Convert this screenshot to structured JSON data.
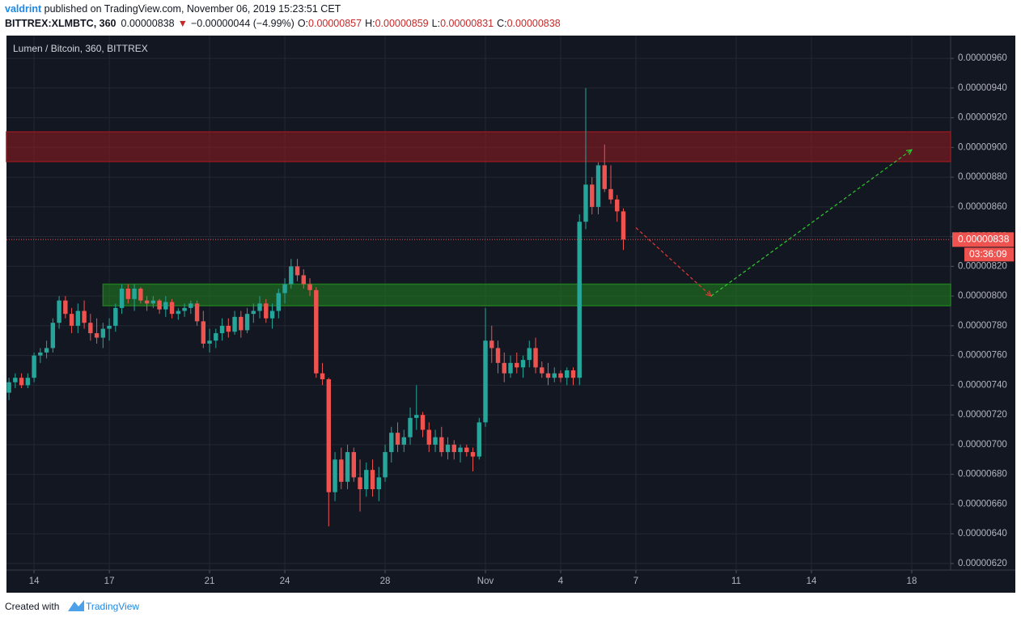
{
  "header": {
    "author": "valdrint",
    "published": " published on TradingView.com, November 06, 2019 15:23:51 CET",
    "symbol": "BITTREX:XLMBTC, 360",
    "price": "0.00000838",
    "arrow": "▼",
    "change": "−0.00000044 (−4.99%)",
    "o_label": "O:",
    "o": "0.00000857",
    "h_label": "H:",
    "h": "0.00000859",
    "l_label": "L:",
    "l": "0.00000831",
    "c_label": "C:",
    "c": "0.00000838"
  },
  "chart_data": {
    "type": "candlestick",
    "title": "Lumen / Bitcoin, 360, BITTREX",
    "up_color": "#26a69a",
    "down_color": "#ef5350",
    "grid": true,
    "open": [
      7.35e-06,
      7.42e-06,
      7.45e-06,
      7.4e-06,
      7.45e-06,
      7.6e-06,
      7.62e-06,
      7.65e-06,
      7.82e-06,
      7.97e-06,
      7.88e-06,
      7.8e-06,
      7.9e-06,
      7.82e-06,
      7.75e-06,
      7.72e-06,
      7.78e-06,
      7.8e-06,
      7.92e-06,
      8.05e-06,
      7.98e-06,
      8.05e-06,
      7.97e-06,
      7.95e-06,
      7.97e-06,
      7.91e-06,
      7.96e-06,
      7.88e-06,
      7.9e-06,
      7.92e-06,
      7.95e-06,
      7.83e-06,
      7.68e-06,
      7.7e-06,
      7.75e-06,
      7.8e-06,
      7.76e-06,
      7.86e-06,
      7.77e-06,
      7.88e-06,
      7.9e-06,
      7.95e-06,
      7.85e-06,
      7.9e-06,
      8.02e-06,
      8.08e-06,
      8.2e-06,
      8.14e-06,
      8.08e-06,
      8.04e-06,
      7.48e-06,
      7.44e-06,
      6.68e-06,
      6.9e-06,
      6.75e-06,
      6.95e-06,
      6.78e-06,
      6.7e-06,
      6.83e-06,
      6.7e-06,
      6.78e-06,
      6.95e-06,
      7.08e-06,
      7e-06,
      7.05e-06,
      7.18e-06,
      7.2e-06,
      7.1e-06,
      7e-06,
      7.05e-06,
      6.95e-06,
      7e-06,
      6.95e-06,
      6.98e-06,
      6.95e-06,
      6.92e-06,
      7.15e-06,
      7.7e-06,
      7.65e-06,
      7.55e-06,
      7.48e-06,
      7.55e-06,
      7.52e-06,
      7.57e-06,
      7.65e-06,
      7.52e-06,
      7.48e-06,
      7.45e-06,
      7.48e-06,
      7.45e-06,
      7.5e-06,
      7.45e-06,
      8.5e-06,
      8.75e-06,
      8.6e-06,
      8.88e-06,
      8.72e-06,
      8.65e-06,
      8.57e-06
    ],
    "high": [
      7.45e-06,
      7.48e-06,
      7.48e-06,
      7.48e-06,
      7.62e-06,
      7.65e-06,
      7.7e-06,
      7.85e-06,
      8e-06,
      8e-06,
      7.92e-06,
      7.95e-06,
      7.97e-06,
      7.88e-06,
      7.85e-06,
      7.82e-06,
      7.85e-06,
      7.95e-06,
      8.08e-06,
      8.08e-06,
      8.08e-06,
      8.06e-06,
      8e-06,
      8e-06,
      7.98e-06,
      8e-06,
      7.98e-06,
      7.92e-06,
      7.95e-06,
      7.97e-06,
      7.97e-06,
      7.9e-06,
      7.78e-06,
      7.78e-06,
      7.85e-06,
      7.85e-06,
      7.9e-06,
      7.9e-06,
      7.92e-06,
      7.95e-06,
      8e-06,
      7.98e-06,
      7.95e-06,
      8.05e-06,
      8.12e-06,
      8.25e-06,
      8.25e-06,
      8.18e-06,
      8.12e-06,
      8.06e-06,
      7.55e-06,
      7.45e-06,
      6.95e-06,
      6.98e-06,
      7e-06,
      6.98e-06,
      6.9e-06,
      6.88e-06,
      6.9e-06,
      6.85e-06,
      7e-06,
      7.12e-06,
      7.15e-06,
      7.1e-06,
      7.25e-06,
      7.4e-06,
      7.22e-06,
      7.15e-06,
      7.1e-06,
      7.12e-06,
      7.05e-06,
      7.03e-06,
      7e-06,
      7e-06,
      6.98e-06,
      7.18e-06,
      7.92e-06,
      7.8e-06,
      7.7e-06,
      7.62e-06,
      7.6e-06,
      7.62e-06,
      7.6e-06,
      7.7e-06,
      7.72e-06,
      7.56e-06,
      7.55e-06,
      7.52e-06,
      7.5e-06,
      7.52e-06,
      7.52e-06,
      8.55e-06,
      9.4e-06,
      8.8e-06,
      8.9e-06,
      9.02e-06,
      8.88e-06,
      8.68e-06,
      8.59e-06
    ],
    "low": [
      7.3e-06,
      7.38e-06,
      7.38e-06,
      7.38e-06,
      7.42e-06,
      7.55e-06,
      7.58e-06,
      7.62e-06,
      7.78e-06,
      7.85e-06,
      7.75e-06,
      7.75e-06,
      7.78e-06,
      7.7e-06,
      7.68e-06,
      7.65e-06,
      7.7e-06,
      7.76e-06,
      7.88e-06,
      7.95e-06,
      7.9e-06,
      7.95e-06,
      7.9e-06,
      7.92e-06,
      7.88e-06,
      7.86e-06,
      7.85e-06,
      7.84e-06,
      7.86e-06,
      7.88e-06,
      7.8e-06,
      7.65e-06,
      7.62e-06,
      7.65e-06,
      7.7e-06,
      7.72e-06,
      7.74e-06,
      7.72e-06,
      7.75e-06,
      7.82e-06,
      7.85e-06,
      7.82e-06,
      7.78e-06,
      7.85e-06,
      7.95e-06,
      8.05e-06,
      8.1e-06,
      8.05e-06,
      8e-06,
      7.45e-06,
      7.4e-06,
      6.45e-06,
      6.62e-06,
      6.7e-06,
      6.7e-06,
      6.75e-06,
      6.55e-06,
      6.65e-06,
      6.65e-06,
      6.62e-06,
      6.75e-06,
      6.88e-06,
      6.95e-06,
      6.95e-06,
      7e-06,
      7.1e-06,
      7.05e-06,
      6.95e-06,
      6.95e-06,
      6.92e-06,
      6.9e-06,
      6.9e-06,
      6.88e-06,
      6.92e-06,
      6.82e-06,
      6.9e-06,
      7.12e-06,
      7.55e-06,
      7.48e-06,
      7.42e-06,
      7.45e-06,
      7.48e-06,
      7.45e-06,
      7.52e-06,
      7.48e-06,
      7.45e-06,
      7.4e-06,
      7.42e-06,
      7.42e-06,
      7.4e-06,
      7.4e-06,
      7.4e-06,
      8.45e-06,
      8.55e-06,
      8.55e-06,
      8.7e-06,
      8.62e-06,
      8.5e-06,
      8.31e-06
    ],
    "close": [
      7.42e-06,
      7.45e-06,
      7.4e-06,
      7.45e-06,
      7.6e-06,
      7.62e-06,
      7.65e-06,
      7.82e-06,
      7.97e-06,
      7.88e-06,
      7.8e-06,
      7.9e-06,
      7.82e-06,
      7.75e-06,
      7.72e-06,
      7.78e-06,
      7.8e-06,
      7.92e-06,
      8.05e-06,
      7.98e-06,
      8.05e-06,
      7.97e-06,
      7.95e-06,
      7.97e-06,
      7.91e-06,
      7.96e-06,
      7.88e-06,
      7.9e-06,
      7.92e-06,
      7.95e-06,
      7.83e-06,
      7.68e-06,
      7.7e-06,
      7.75e-06,
      7.8e-06,
      7.76e-06,
      7.86e-06,
      7.77e-06,
      7.88e-06,
      7.9e-06,
      7.95e-06,
      7.85e-06,
      7.9e-06,
      8.02e-06,
      8.08e-06,
      8.2e-06,
      8.14e-06,
      8.08e-06,
      8.04e-06,
      7.48e-06,
      7.44e-06,
      6.68e-06,
      6.9e-06,
      6.75e-06,
      6.95e-06,
      6.78e-06,
      6.7e-06,
      6.83e-06,
      6.7e-06,
      6.78e-06,
      6.95e-06,
      7.08e-06,
      7e-06,
      7.05e-06,
      7.18e-06,
      7.2e-06,
      7.1e-06,
      7e-06,
      7.05e-06,
      6.95e-06,
      7e-06,
      6.95e-06,
      6.98e-06,
      6.95e-06,
      6.92e-06,
      7.15e-06,
      7.7e-06,
      7.65e-06,
      7.55e-06,
      7.48e-06,
      7.55e-06,
      7.52e-06,
      7.57e-06,
      7.65e-06,
      7.52e-06,
      7.48e-06,
      7.45e-06,
      7.48e-06,
      7.45e-06,
      7.5e-06,
      7.45e-06,
      8.5e-06,
      8.75e-06,
      8.6e-06,
      8.88e-06,
      8.72e-06,
      8.65e-06,
      8.57e-06,
      8.38e-06
    ],
    "xlim": [
      -0.4,
      150.2
    ],
    "xticks": [
      {
        "value": 4,
        "label": "14"
      },
      {
        "value": 16,
        "label": "17"
      },
      {
        "value": 32,
        "label": "21"
      },
      {
        "value": 44,
        "label": "24"
      },
      {
        "value": 60,
        "label": "28"
      },
      {
        "value": 76,
        "label": "Nov"
      },
      {
        "value": 88,
        "label": "4"
      },
      {
        "value": 100,
        "label": "7"
      },
      {
        "value": 116,
        "label": "11"
      },
      {
        "value": 128,
        "label": "14"
      },
      {
        "value": 144,
        "label": "18"
      }
    ],
    "ylim": [
      6.156e-06,
      9.753e-06
    ],
    "yticks": [
      {
        "value": 6.2e-06,
        "label": "0.00000620"
      },
      {
        "value": 6.4e-06,
        "label": "0.00000640"
      },
      {
        "value": 6.6e-06,
        "label": "0.00000660"
      },
      {
        "value": 6.8e-06,
        "label": "0.00000680"
      },
      {
        "value": 7e-06,
        "label": "0.00000700"
      },
      {
        "value": 7.2e-06,
        "label": "0.00000720"
      },
      {
        "value": 7.4e-06,
        "label": "0.00000740"
      },
      {
        "value": 7.6e-06,
        "label": "0.00000760"
      },
      {
        "value": 7.8e-06,
        "label": "0.00000780"
      },
      {
        "value": 8e-06,
        "label": "0.00000800"
      },
      {
        "value": 8.2e-06,
        "label": "0.00000820"
      },
      {
        "value": 8.4e-06,
        "label": "0.00000840"
      },
      {
        "value": 8.6e-06,
        "label": "0.00000860"
      },
      {
        "value": 8.8e-06,
        "label": "0.00000880"
      },
      {
        "value": 9e-06,
        "label": "0.00000900"
      },
      {
        "value": 9.2e-06,
        "label": "0.00000920"
      },
      {
        "value": 9.4e-06,
        "label": "0.00000940"
      },
      {
        "value": 9.6e-06,
        "label": "0.00000960"
      }
    ],
    "zones": [
      {
        "from": 8.905e-06,
        "to": 9.105e-06,
        "x_start": -0.4,
        "color": "#8b1a1f"
      },
      {
        "from": 7.935e-06,
        "to": 8.08e-06,
        "x_start": 15,
        "color": "#1f7a1f"
      }
    ],
    "arrows": [
      {
        "x": [
          100,
          112
        ],
        "y": [
          8.46e-06,
          8e-06
        ],
        "color": "#e53935"
      },
      {
        "x": [
          112,
          144
        ],
        "y": [
          8e-06,
          8.985e-06
        ],
        "color": "#2ecc2e"
      }
    ],
    "last_price_label": "0.00000838",
    "countdown": "03:36:09"
  },
  "footer": {
    "created": "Created with",
    "brand": "TradingView"
  }
}
